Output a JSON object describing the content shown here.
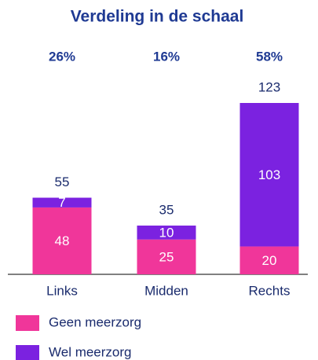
{
  "chart_data": {
    "type": "stacked_bar",
    "title": "Verdeling in de schaal",
    "categories": [
      "Links",
      "Midden",
      "Rechts"
    ],
    "shares": {
      "values": [
        26,
        16,
        58
      ],
      "value_labels": [
        "26%",
        "16%",
        "58%"
      ]
    },
    "totals": [
      55,
      35,
      123
    ],
    "series": [
      {
        "name": "Geen meerzorg",
        "color": "#f0369a",
        "values": [
          48,
          25,
          20
        ]
      },
      {
        "name": "Wel meerzorg",
        "color": "#7b22e0",
        "values": [
          7,
          10,
          103
        ]
      }
    ]
  }
}
